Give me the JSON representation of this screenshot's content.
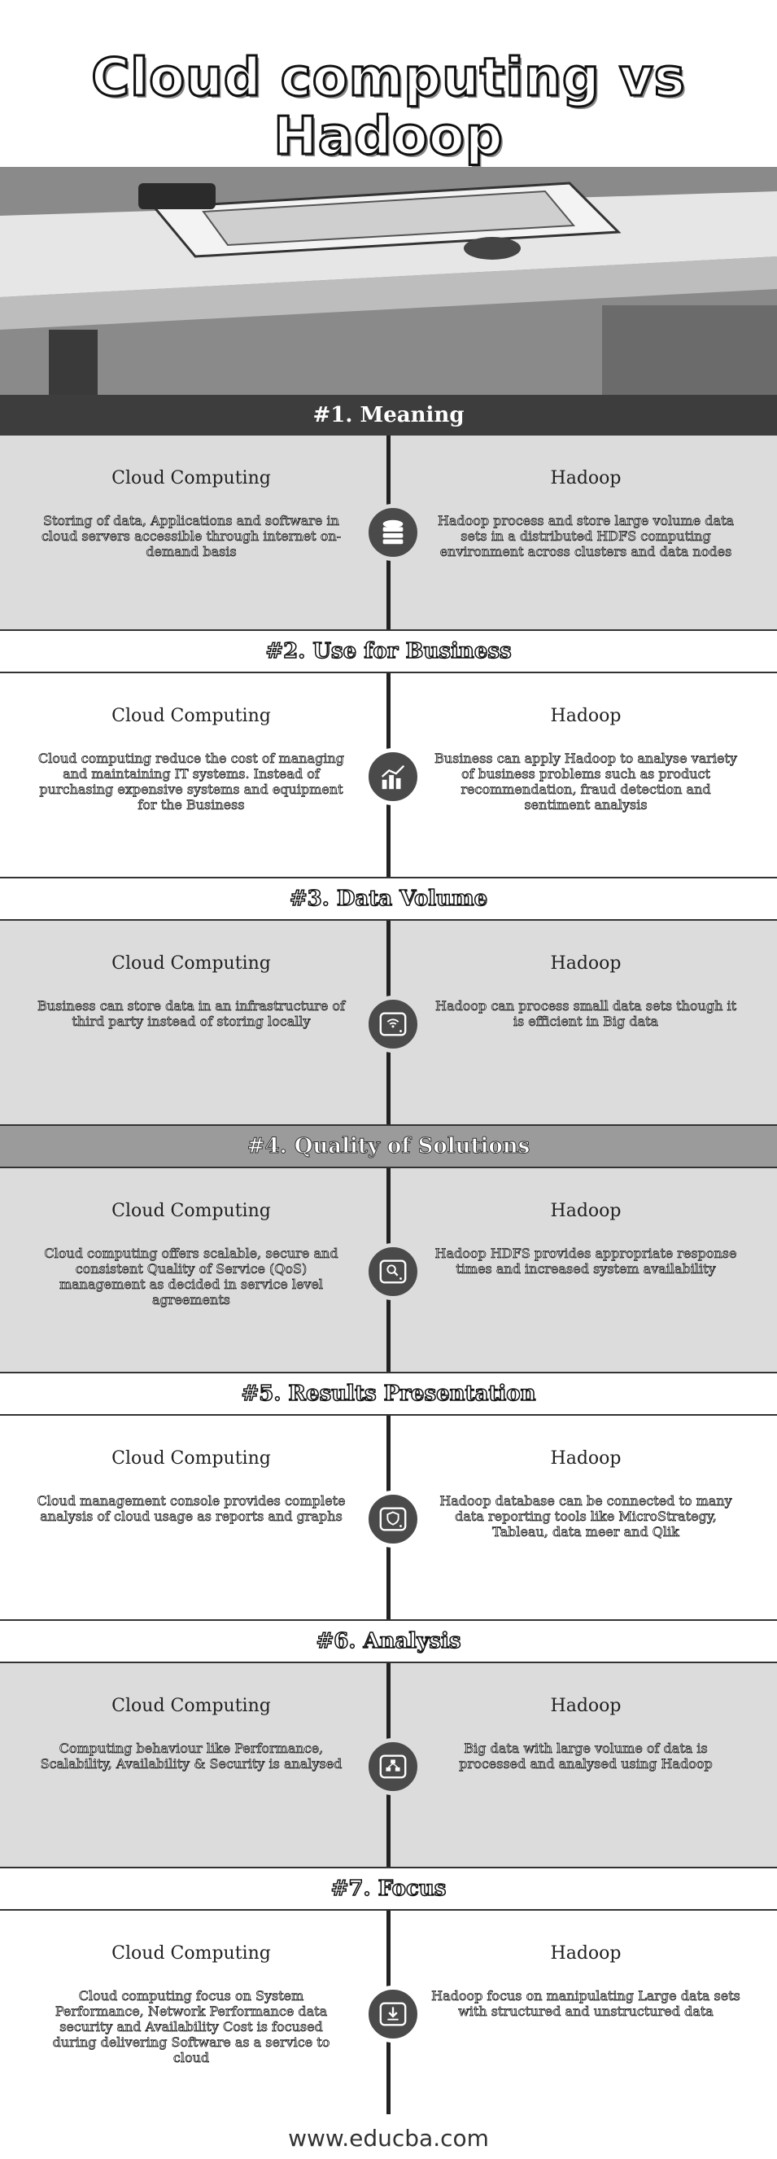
{
  "title_line1": "Cloud computing vs",
  "title_line2": "Hadoop",
  "sections": [
    {
      "heading": "#1. Meaning",
      "left_title": "Cloud Computing",
      "left_text": "Storing of data, Applications and software in cloud servers accessible through internet on-demand basis",
      "right_title": "Hadoop",
      "right_text": "Hadoop process and store large volume data sets in a distributed HDFS computing environment across clusters and data nodes",
      "icon": "database-icon"
    },
    {
      "heading": "#2. Use for Business",
      "left_title": "Cloud Computing",
      "left_text": "Cloud computing reduce the cost of managing and maintaining IT systems. Instead of purchasing expensive systems and equipment for the Business",
      "right_title": "Hadoop",
      "right_text": "Business can apply Hadoop to analyse variety of business problems such as product recommendation, fraud detection and sentiment analysis",
      "icon": "growth-chart-icon"
    },
    {
      "heading": "#3. Data Volume",
      "left_title": "Cloud Computing",
      "left_text": "Business can store data in an infrastructure of third party instead of storing locally",
      "right_title": "Hadoop",
      "right_text": "Hadoop can process small data sets though it is efficient in Big data",
      "icon": "wifi-drive-icon"
    },
    {
      "heading": "#4. Quality of Solutions",
      "left_title": "Cloud Computing",
      "left_text": "Cloud computing offers scalable, secure and consistent Quality of Service (QoS) management as decided in service level agreements",
      "right_title": "Hadoop",
      "right_text": "Hadoop HDFS provides appropriate response times and increased system availability",
      "icon": "search-drive-icon"
    },
    {
      "heading": "#5. Results Presentation",
      "left_title": "Cloud Computing",
      "left_text": "Cloud management console provides complete analysis of cloud usage as reports and graphs",
      "right_title": "Hadoop",
      "right_text": "Hadoop database can be connected to many data reporting tools like MicroStrategy, Tableau, data meer and Qlik",
      "icon": "shield-drive-icon"
    },
    {
      "heading": "#6. Analysis",
      "left_title": "Cloud Computing",
      "left_text": "Computing behaviour like Performance, Scalability, Availability & Security is analysed",
      "right_title": "Hadoop",
      "right_text": "Big data with large volume of data is processed and analysed using Hadoop",
      "icon": "network-drive-icon"
    },
    {
      "heading": "#7. Focus",
      "left_title": "Cloud Computing",
      "left_text": "Cloud computing focus on System Performance, Network Performance data security and Availability Cost is focused during delivering Software as a service to cloud",
      "right_title": "Hadoop",
      "right_text": "Hadoop focus on manipulating Large data sets with structured and unstructured data",
      "icon": "download-drive-icon"
    }
  ],
  "footer": "www.educba.com",
  "colors": {
    "dark_band": "#3d3d3d",
    "gray_band": "#dcdcdc",
    "accent_band": "#9b9b9b",
    "icon_bg": "#4a4a4a"
  }
}
